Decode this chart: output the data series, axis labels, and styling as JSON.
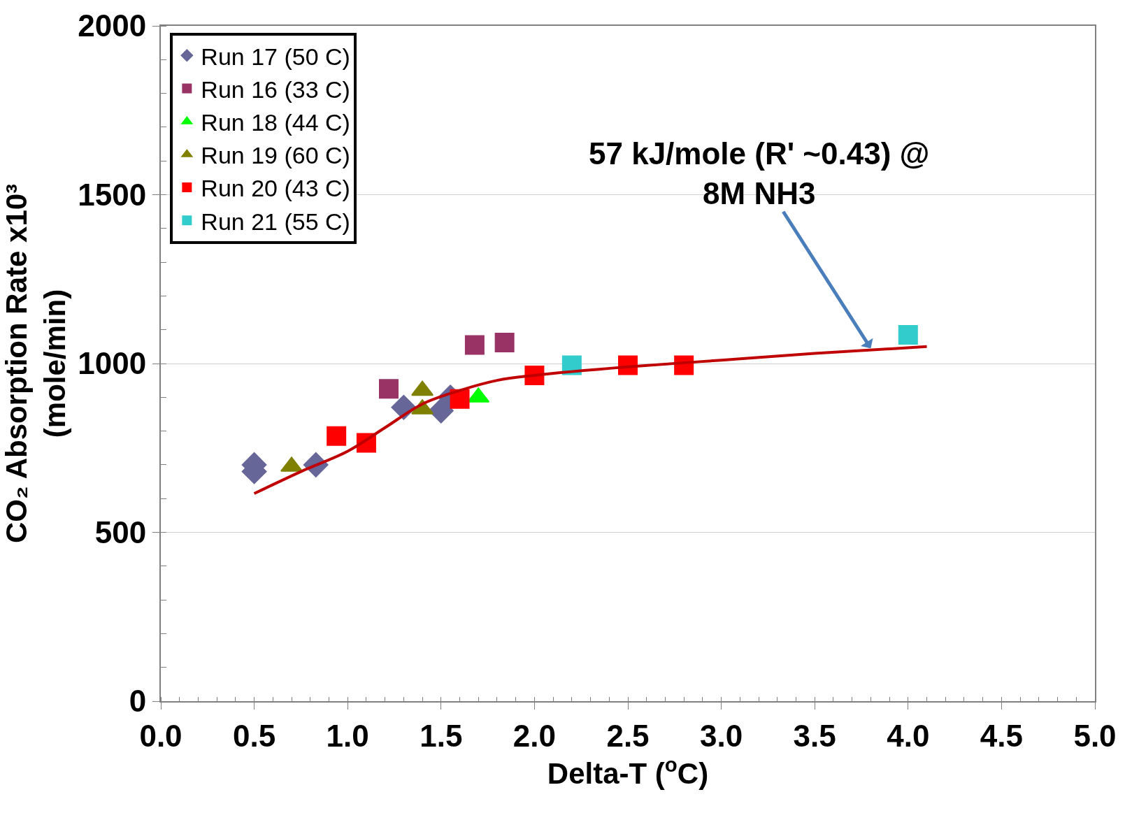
{
  "chart_data": {
    "type": "scatter",
    "xlabel": "Delta-T ($^{o}$C)",
    "ylabel": "CO₂ Absorption Rate x10³\n(mole/min)",
    "series": [
      {
        "name": "Run 17 (50 C)",
        "color": "#666699",
        "marker": "diamond",
        "x": [
          0.5,
          0.5,
          0.83,
          1.3,
          1.5,
          1.55
        ],
        "values": [
          700,
          680,
          700,
          870,
          860,
          900
        ]
      },
      {
        "name": "Run 16 (33 C)",
        "color": "#993366",
        "marker": "square",
        "x": [
          1.22,
          1.68,
          1.84
        ],
        "values": [
          925,
          1055,
          1062
        ]
      },
      {
        "name": "Run 18 (44 C)",
        "color": "#00ff00",
        "marker": "triangle",
        "x": [
          1.7
        ],
        "values": [
          900
        ]
      },
      {
        "name": "Run 19 (60 C)",
        "color": "#808000",
        "marker": "triangle",
        "x": [
          0.7,
          1.4,
          1.4
        ],
        "values": [
          695,
          920,
          865
        ]
      },
      {
        "name": "Run 20 (43 C)",
        "color": "#ff0000",
        "marker": "square",
        "x": [
          0.94,
          1.1,
          1.6,
          2.0,
          2.5,
          2.8
        ],
        "values": [
          785,
          765,
          895,
          965,
          995,
          995
        ]
      },
      {
        "name": "Run 21 (55 C)",
        "color": "#33cccc",
        "marker": "square",
        "x": [
          2.2,
          4.0
        ],
        "values": [
          995,
          1085
        ]
      },
      {
        "type": "line",
        "color": "#c00000",
        "marker": "none",
        "x": [
          0.5,
          0.75,
          1.0,
          1.2,
          1.4,
          1.6,
          1.8,
          2.0,
          2.5,
          3.0,
          3.5,
          4.1
        ],
        "values": [
          615,
          680,
          740,
          810,
          880,
          920,
          950,
          965,
          990,
          1010,
          1030,
          1050
        ]
      }
    ],
    "annotations": [
      {
        "text": "57 kJ/mole (R' ~0.43) @\n8M NH3",
        "x": 3.8,
        "y": 1045
      }
    ],
    "xlim": [
      0,
      5
    ],
    "xticks": [
      {
        "value": 0,
        "label": "0.0"
      },
      {
        "value": 0.5,
        "label": "0.5"
      },
      {
        "value": 1,
        "label": "1.0"
      },
      {
        "value": 1.5,
        "label": "1.5"
      },
      {
        "value": 2,
        "label": "2.0"
      },
      {
        "value": 2.5,
        "label": "2.5"
      },
      {
        "value": 3,
        "label": "3.0"
      },
      {
        "value": 3.5,
        "label": "3.5"
      },
      {
        "value": 4,
        "label": "4.0"
      },
      {
        "value": 4.5,
        "label": "4.5"
      },
      {
        "value": 5,
        "label": "5.0"
      }
    ],
    "ylim": [
      0,
      2000
    ],
    "yticks": [
      0,
      500,
      1000,
      1500,
      2000
    ],
    "grid": "y",
    "legend": "top left"
  }
}
